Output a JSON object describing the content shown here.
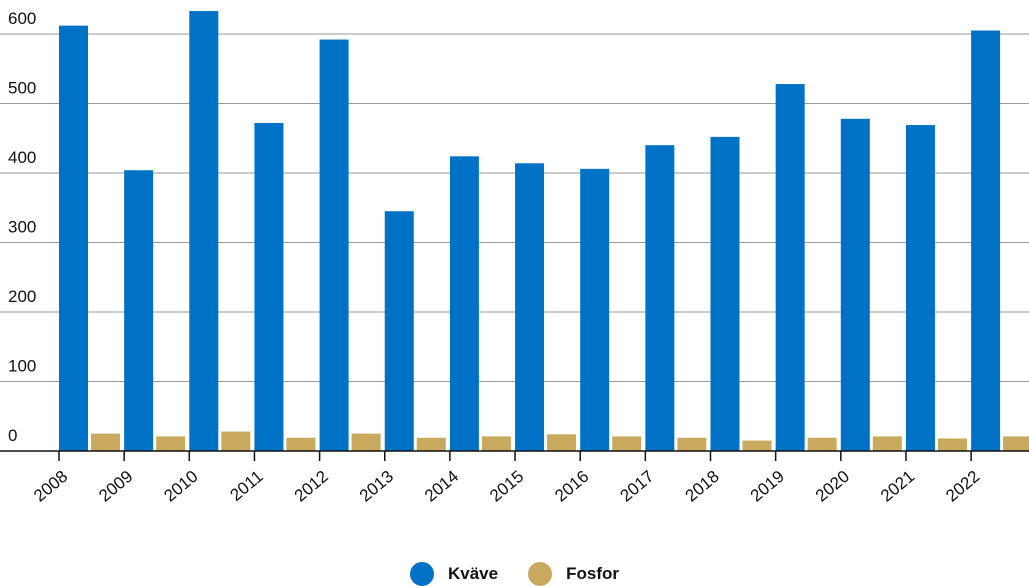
{
  "chart_data": {
    "type": "bar",
    "categories": [
      "2008",
      "2009",
      "2010",
      "2011",
      "2012",
      "2013",
      "2014",
      "2015",
      "2016",
      "2017",
      "2018",
      "2019",
      "2020",
      "2021",
      "2022"
    ],
    "series": [
      {
        "name": "Kväve",
        "color": "#0072c6",
        "values": [
          612,
          404,
          633,
          472,
          592,
          345,
          424,
          414,
          406,
          440,
          452,
          528,
          478,
          469,
          605
        ]
      },
      {
        "name": "Fosfor",
        "color": "#c9a95e",
        "values": [
          25,
          21,
          28,
          19,
          25,
          19,
          21,
          24,
          21,
          19,
          15,
          19,
          21,
          18,
          21
        ]
      }
    ],
    "yticks": [
      0,
      100,
      200,
      300,
      400,
      500,
      600
    ],
    "ylim": [
      0,
      650
    ],
    "grid": true,
    "legend_position": "bottom-center",
    "title": "",
    "xlabel": "",
    "ylabel": ""
  },
  "legend": {
    "items": [
      {
        "label": "Kväve",
        "color": "#0072c6"
      },
      {
        "label": "Fosfor",
        "color": "#c9a95e"
      }
    ]
  }
}
